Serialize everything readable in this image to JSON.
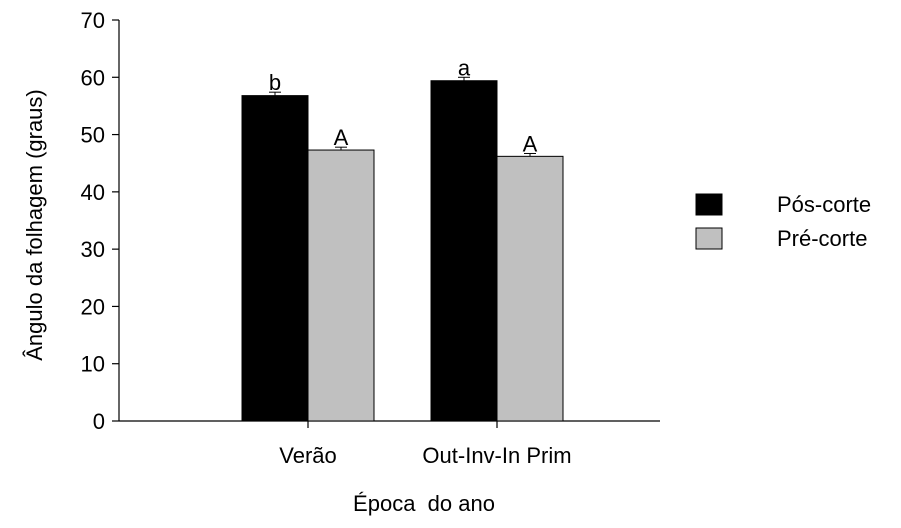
{
  "chart_data": {
    "type": "bar",
    "title": "",
    "xlabel": "Época  do ano",
    "ylabel": "Ângulo da folhagem (graus)",
    "ylim": [
      0,
      70
    ],
    "yticks": [
      0,
      10,
      20,
      30,
      40,
      50,
      60,
      70
    ],
    "grid": false,
    "legend_position": "right",
    "categories": [
      "Verão",
      "Out-Inv-In Prim"
    ],
    "series": [
      {
        "name": "Pós-corte",
        "color": "#000000",
        "values": [
          56.8,
          59.4
        ],
        "errors": [
          0.6,
          0.6
        ],
        "labels": [
          "b",
          "a"
        ]
      },
      {
        "name": "Pré-corte",
        "color": "#c0c0c0",
        "values": [
          47.3,
          46.2
        ],
        "errors": [
          0.5,
          0.5
        ],
        "labels": [
          "A",
          "A"
        ]
      }
    ]
  }
}
